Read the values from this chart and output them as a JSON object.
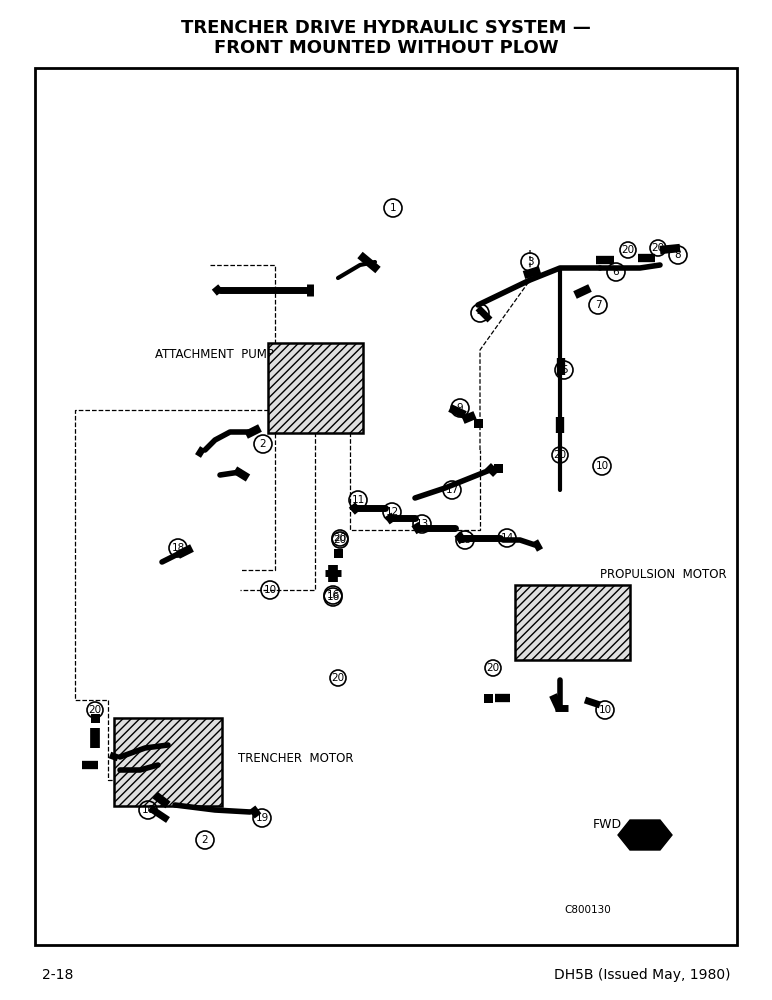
{
  "title_line1": "TRENCHER DRIVE HYDRAULIC SYSTEM —",
  "title_line2": "FRONT MOUNTED WITHOUT PLOW",
  "page_left": "2-18",
  "page_right": "DH5B (Issued May, 1980)",
  "diagram_ref": "C800130",
  "bg_color": "#ffffff",
  "border_color": "#000000",
  "text_color": "#000000",
  "attachment_pump_label": "ATTACHMENT  PUMP",
  "propulsion_motor_label": "PROPULSION  MOTOR",
  "trencher_motor_label": "TRENCHER  MOTOR",
  "fwd_label": "FWD"
}
